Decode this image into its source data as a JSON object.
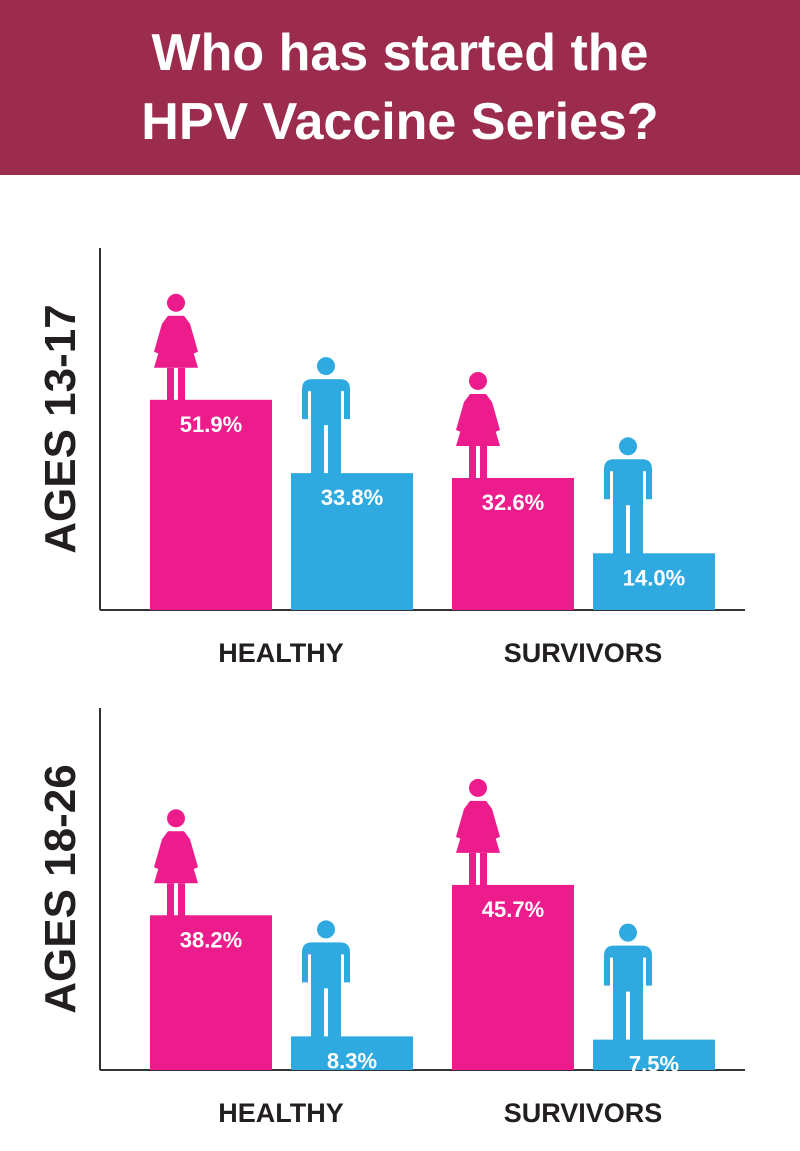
{
  "header": {
    "title_line1": "Who has started the",
    "title_line2": "HPV Vaccine Series?"
  },
  "colors": {
    "female": "#ec1c8c",
    "male": "#2eaae1",
    "header_bg": "#9c2c4d",
    "axis": "#333333"
  },
  "chart_data": [
    {
      "type": "bar",
      "ylabel": "AGES 13-17",
      "categories": [
        "HEALTHY",
        "SURVIVORS"
      ],
      "series": [
        {
          "gender": "female",
          "icon": "female-icon",
          "values": [
            51.9,
            32.6
          ],
          "labels": [
            "51.9%",
            "32.6%"
          ]
        },
        {
          "gender": "male",
          "icon": "male-icon",
          "values": [
            33.8,
            14.0
          ],
          "labels": [
            "33.8%",
            "14.0%"
          ]
        }
      ],
      "ylim": [
        0,
        70
      ],
      "grid": false
    },
    {
      "type": "bar",
      "ylabel": "AGES 18-26",
      "categories": [
        "HEALTHY",
        "SURVIVORS"
      ],
      "series": [
        {
          "gender": "female",
          "icon": "female-icon",
          "values": [
            38.2,
            45.7
          ],
          "labels": [
            "38.2%",
            "45.7%"
          ]
        },
        {
          "gender": "male",
          "icon": "male-icon",
          "values": [
            8.3,
            7.5
          ],
          "labels": [
            "8.3%",
            "7.5%"
          ]
        }
      ],
      "ylim": [
        0,
        70
      ],
      "grid": false
    }
  ]
}
